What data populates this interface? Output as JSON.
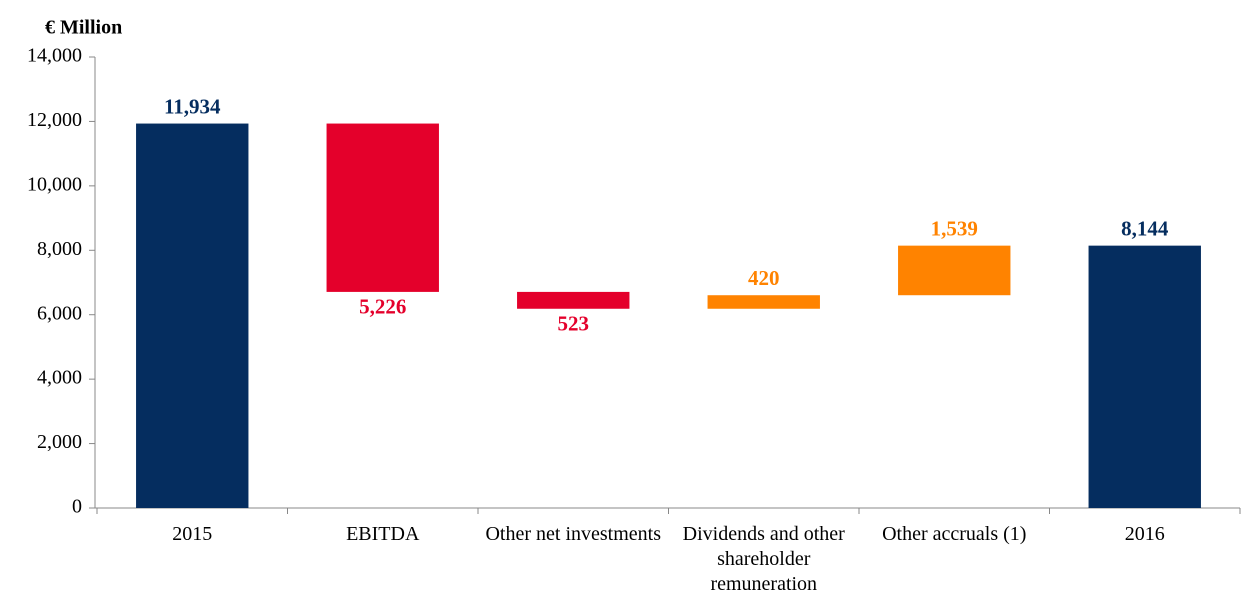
{
  "chart_data": {
    "type": "waterfall",
    "y_label": "€ Million",
    "categories": [
      "2015",
      "EBITDA",
      "Other net investments",
      "Dividends and other shareholder remuneration",
      "Other accruals (1)",
      "2016"
    ],
    "values": [
      11934,
      -5226,
      -523,
      420,
      1539,
      8144
    ],
    "value_labels": [
      "11,934",
      "5,226",
      "523",
      "420",
      "1,539",
      "8,144"
    ],
    "colors": [
      "#052d5f",
      "#e4002b",
      "#e4002b",
      "#ff8300",
      "#ff8300",
      "#052d5f"
    ],
    "ylim": [
      0,
      14000
    ],
    "yticks": [
      0,
      {
        "value": 2000,
        "label": "2,000"
      },
      {
        "value": 4000,
        "label": "4,000"
      },
      {
        "value": 6000,
        "label": "6,000"
      },
      {
        "value": 8000,
        "label": "8,000"
      },
      {
        "value": 10000,
        "label": "10,000"
      },
      {
        "value": 12000,
        "label": "12,000"
      },
      {
        "value": 14000,
        "label": "14,000"
      }
    ],
    "grid": false
  }
}
